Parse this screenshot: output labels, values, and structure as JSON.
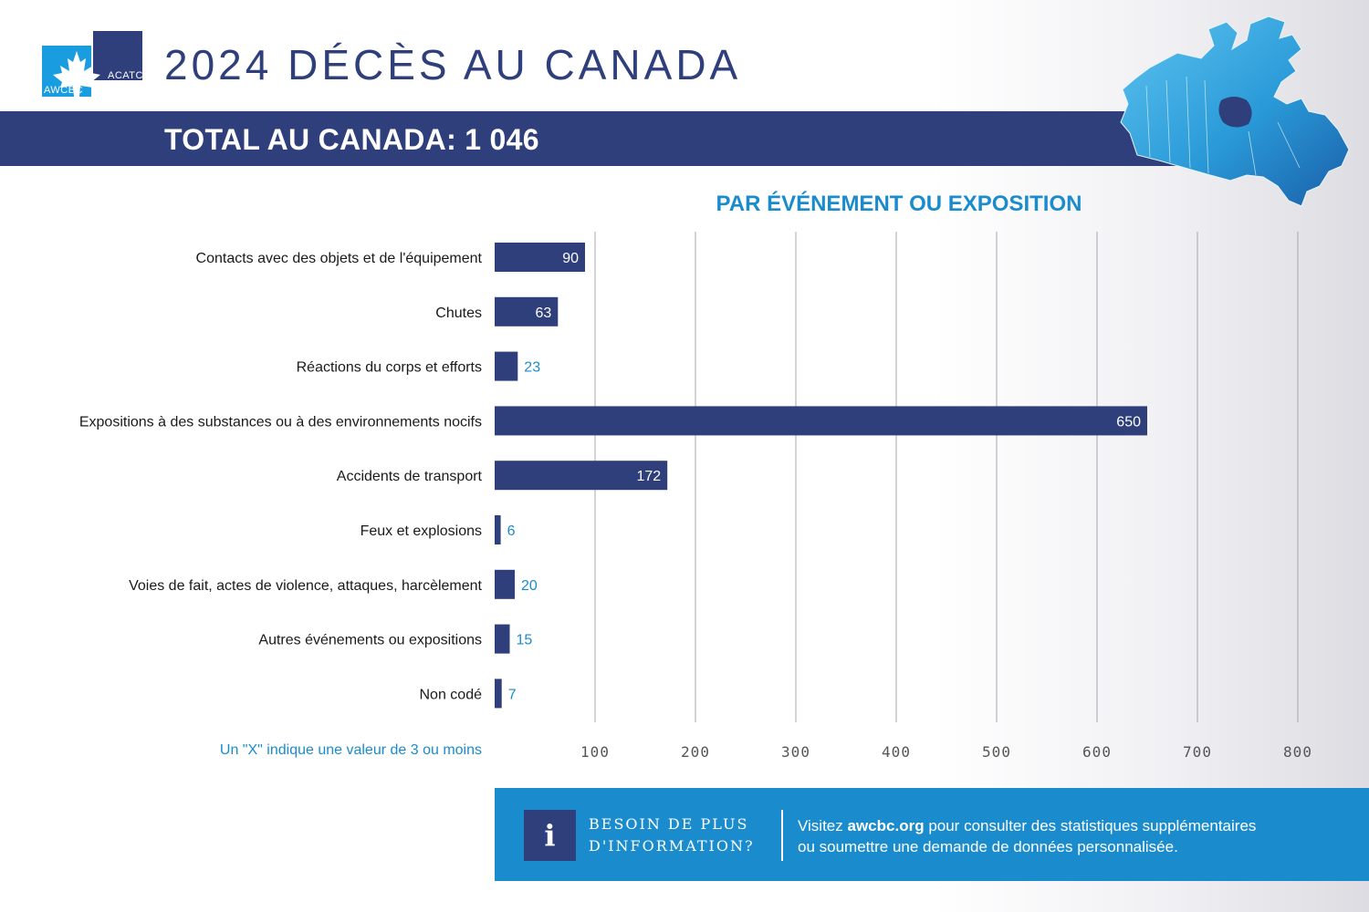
{
  "logo": {
    "text_left": "AWCBC",
    "text_right": "ACATC",
    "icon": "maple-leaf-icon",
    "colors": {
      "navy": "#2e3f7c",
      "light_blue": "#1a9de0"
    }
  },
  "header": {
    "title": "2024 DÉCÈS AU CANADA",
    "total": "TOTAL AU CANADA: 1 046",
    "map_icon": "canada-map-icon"
  },
  "chart_data": {
    "type": "bar",
    "orientation": "horizontal",
    "title": "PAR ÉVÉNEMENT OU EXPOSITION",
    "categories": [
      "Contacts avec des objets et de l'équipement",
      "Chutes",
      "Réactions du corps et efforts",
      "Expositions à des substances ou à des environnements nocifs",
      "Accidents de transport",
      "Feux et explosions",
      "Voies de fait, actes de violence, attaques, harcèlement",
      "Autres événements ou expositions",
      "Non codé"
    ],
    "values": [
      90,
      63,
      23,
      650,
      172,
      6,
      20,
      15,
      7
    ],
    "xlim": [
      0,
      800
    ],
    "xticks": [
      100,
      200,
      300,
      400,
      500,
      600,
      700,
      800
    ],
    "grid": "vertical",
    "legend": "none",
    "bar_color": "#2e3f7c",
    "label_color_outside": "#1a8ccd"
  },
  "footnote": "Un \"X\" indique une valeur de 3 ou moins",
  "info": {
    "icon": "info-icon",
    "icon_glyph": "i",
    "heading_line1": "BESOIN DE PLUS",
    "heading_line2": "D'INFORMATION?",
    "text_prefix": "Visitez ",
    "text_link": "awcbc.org",
    "text_suffix_line1": " pour consulter des statistiques supplémentaires",
    "text_line2": "ou soumettre une demande de données personnalisée."
  }
}
